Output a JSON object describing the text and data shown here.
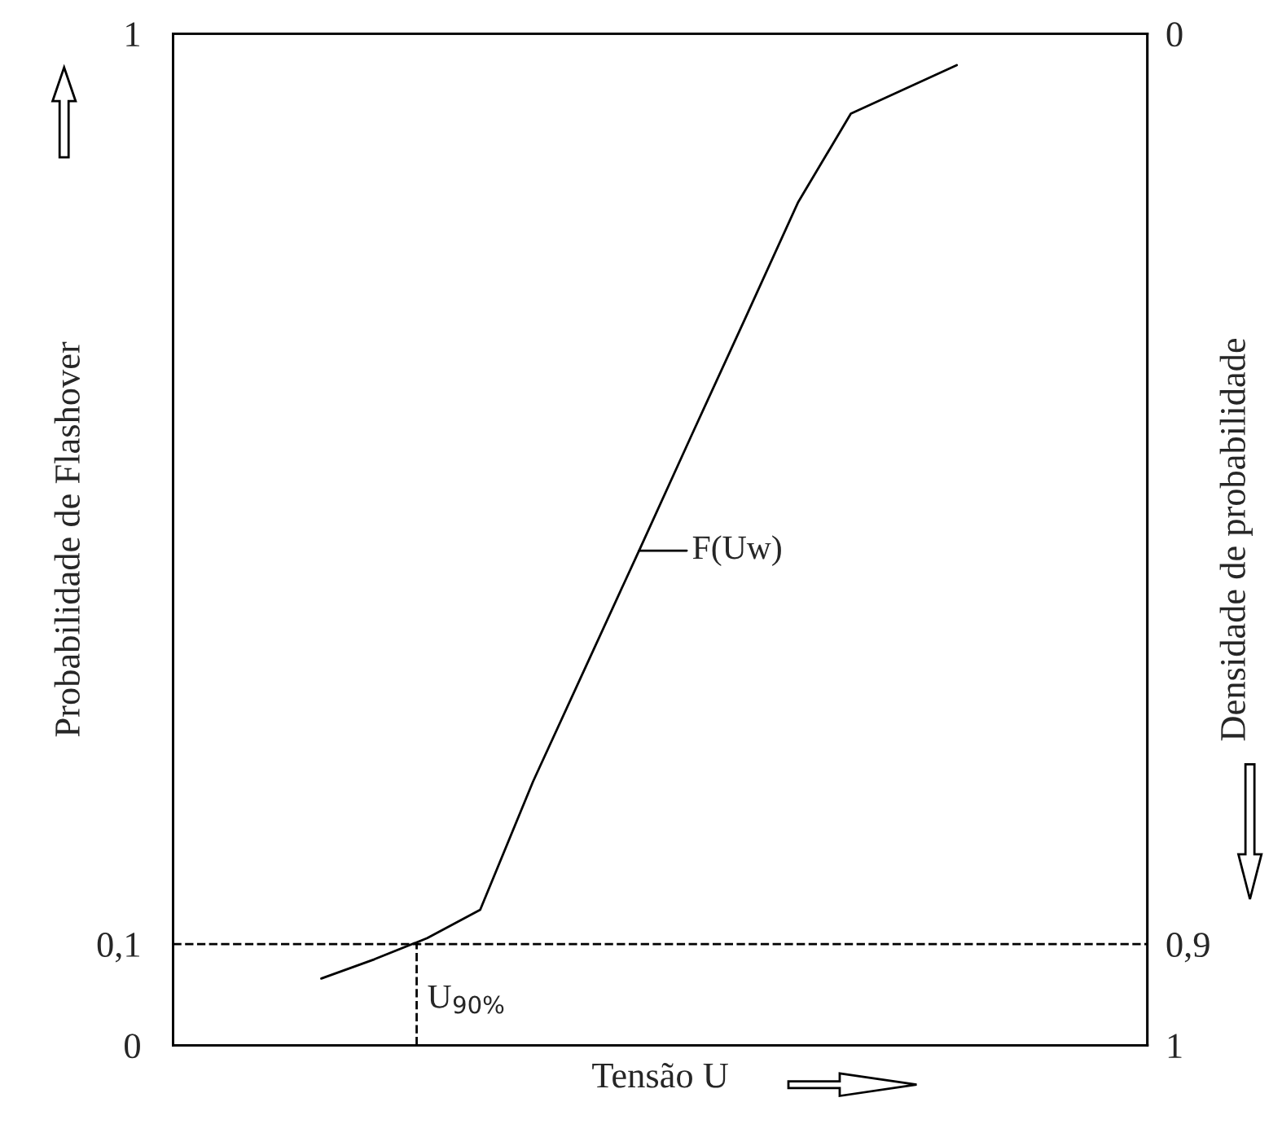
{
  "chart_data": {
    "type": "line",
    "xlabel": "Tensão U",
    "ylabel": "Probabilidade de Flashover",
    "y2label": "Densidade de probabilidade",
    "categories": [
      null,
      null,
      null,
      null,
      null,
      null,
      null,
      null,
      null,
      null,
      null,
      null,
      null
    ],
    "series": [
      {
        "color": "#000000",
        "values": [
          0.066,
          0.085,
          0.106,
          0.134,
          0.261,
          0.375,
          0.489,
          0.604,
          0.718,
          0.833,
          0.921,
          0.945,
          0.969
        ]
      }
    ],
    "ylim": [
      0,
      1
    ],
    "yticks": [
      {
        "value": 0,
        "label": "0"
      },
      {
        "value": 0.1,
        "label": "0,1"
      },
      {
        "value": 1,
        "label": "1"
      }
    ],
    "y2lim": [
      1,
      0
    ],
    "y2ticks": [
      {
        "value": 1,
        "label": "1"
      },
      {
        "value": 0.9,
        "label": "0,9"
      },
      {
        "value": 0,
        "label": "0"
      }
    ],
    "ref_lines": [
      {
        "axis": "y",
        "value": 0.1,
        "label": null,
        "line_style": "dashed",
        "color": "#000000"
      }
    ],
    "annotations": [
      "F(Uw)",
      "U$_{90%}$"
    ],
    "grid": false,
    "marker": "none",
    "line_style": "solid"
  }
}
